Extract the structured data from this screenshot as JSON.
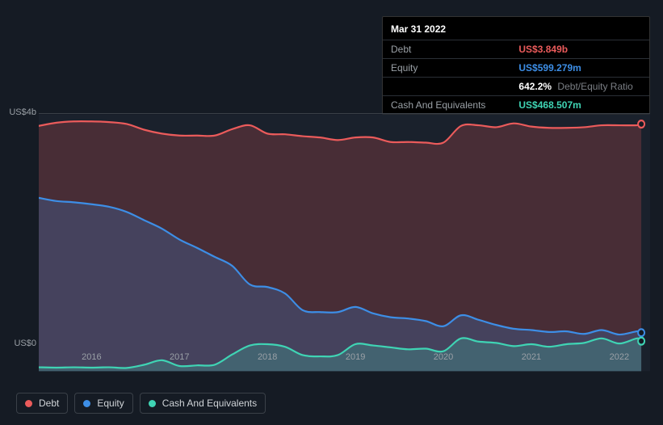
{
  "background_color": "#151b24",
  "tooltip": {
    "date": "Mar 31 2022",
    "rows": [
      {
        "label": "Debt",
        "value": "US$3.849b",
        "color": "#eb5b5b"
      },
      {
        "label": "Equity",
        "value": "US$599.279m",
        "color": "#3d8ee6"
      },
      {
        "label": "",
        "value": "642.2%",
        "sublabel": "Debt/Equity Ratio",
        "color": "#ffffff"
      },
      {
        "label": "Cash And Equivalents",
        "value": "US$468.507m",
        "color": "#3fd4b4"
      }
    ]
  },
  "chart": {
    "type": "area",
    "x_axis": {
      "years": [
        2016,
        2017,
        2018,
        2019,
        2020,
        2021,
        2022
      ],
      "min": 2015.4,
      "max": 2022.35
    },
    "y_axis": {
      "ticks": [
        {
          "v": 0,
          "label": "US$0"
        },
        {
          "v": 4000,
          "label": "US$4b"
        }
      ],
      "min": 0,
      "max": 4000
    },
    "grid_color": "#3a4048",
    "plot_bg": "#1a212c",
    "series": [
      {
        "name": "Debt",
        "color": "#eb5b5b",
        "fill_opacity": 0.22,
        "line_width": 2,
        "data": [
          [
            2015.4,
            3820
          ],
          [
            2015.6,
            3870
          ],
          [
            2015.8,
            3890
          ],
          [
            2016.0,
            3890
          ],
          [
            2016.2,
            3880
          ],
          [
            2016.4,
            3850
          ],
          [
            2016.6,
            3760
          ],
          [
            2016.8,
            3700
          ],
          [
            2017.0,
            3670
          ],
          [
            2017.2,
            3670
          ],
          [
            2017.4,
            3670
          ],
          [
            2017.6,
            3770
          ],
          [
            2017.8,
            3830
          ],
          [
            2018.0,
            3700
          ],
          [
            2018.2,
            3690
          ],
          [
            2018.4,
            3660
          ],
          [
            2018.6,
            3640
          ],
          [
            2018.8,
            3600
          ],
          [
            2019.0,
            3640
          ],
          [
            2019.2,
            3640
          ],
          [
            2019.4,
            3570
          ],
          [
            2019.6,
            3570
          ],
          [
            2019.8,
            3560
          ],
          [
            2020.0,
            3560
          ],
          [
            2020.2,
            3820
          ],
          [
            2020.4,
            3830
          ],
          [
            2020.6,
            3800
          ],
          [
            2020.8,
            3860
          ],
          [
            2021.0,
            3810
          ],
          [
            2021.2,
            3790
          ],
          [
            2021.4,
            3790
          ],
          [
            2021.6,
            3800
          ],
          [
            2021.8,
            3830
          ],
          [
            2022.0,
            3830
          ],
          [
            2022.2,
            3830
          ],
          [
            2022.25,
            3849
          ]
        ]
      },
      {
        "name": "Equity",
        "color": "#3d8ee6",
        "fill_opacity": 0.22,
        "line_width": 2,
        "data": [
          [
            2015.4,
            2700
          ],
          [
            2015.6,
            2650
          ],
          [
            2015.8,
            2630
          ],
          [
            2016.0,
            2600
          ],
          [
            2016.2,
            2560
          ],
          [
            2016.4,
            2480
          ],
          [
            2016.6,
            2350
          ],
          [
            2016.8,
            2220
          ],
          [
            2017.0,
            2050
          ],
          [
            2017.2,
            1920
          ],
          [
            2017.4,
            1780
          ],
          [
            2017.6,
            1640
          ],
          [
            2017.8,
            1350
          ],
          [
            2018.0,
            1310
          ],
          [
            2018.2,
            1210
          ],
          [
            2018.4,
            950
          ],
          [
            2018.6,
            920
          ],
          [
            2018.8,
            920
          ],
          [
            2019.0,
            1000
          ],
          [
            2019.2,
            900
          ],
          [
            2019.4,
            840
          ],
          [
            2019.6,
            820
          ],
          [
            2019.8,
            780
          ],
          [
            2020.0,
            700
          ],
          [
            2020.2,
            870
          ],
          [
            2020.4,
            800
          ],
          [
            2020.6,
            720
          ],
          [
            2020.8,
            660
          ],
          [
            2021.0,
            640
          ],
          [
            2021.2,
            610
          ],
          [
            2021.4,
            620
          ],
          [
            2021.6,
            580
          ],
          [
            2021.8,
            640
          ],
          [
            2022.0,
            570
          ],
          [
            2022.2,
            620
          ],
          [
            2022.25,
            599
          ]
        ]
      },
      {
        "name": "Cash And Equivalents",
        "color": "#3fd4b4",
        "fill_opacity": 0.22,
        "line_width": 2,
        "data": [
          [
            2015.4,
            60
          ],
          [
            2015.6,
            55
          ],
          [
            2015.8,
            60
          ],
          [
            2016.0,
            55
          ],
          [
            2016.2,
            60
          ],
          [
            2016.4,
            50
          ],
          [
            2016.6,
            100
          ],
          [
            2016.8,
            170
          ],
          [
            2017.0,
            80
          ],
          [
            2017.2,
            90
          ],
          [
            2017.4,
            100
          ],
          [
            2017.6,
            260
          ],
          [
            2017.8,
            400
          ],
          [
            2018.0,
            420
          ],
          [
            2018.2,
            380
          ],
          [
            2018.4,
            250
          ],
          [
            2018.6,
            230
          ],
          [
            2018.8,
            250
          ],
          [
            2019.0,
            420
          ],
          [
            2019.2,
            400
          ],
          [
            2019.4,
            370
          ],
          [
            2019.6,
            340
          ],
          [
            2019.8,
            350
          ],
          [
            2020.0,
            310
          ],
          [
            2020.2,
            510
          ],
          [
            2020.4,
            460
          ],
          [
            2020.6,
            440
          ],
          [
            2020.8,
            390
          ],
          [
            2021.0,
            420
          ],
          [
            2021.2,
            380
          ],
          [
            2021.4,
            420
          ],
          [
            2021.6,
            440
          ],
          [
            2021.8,
            510
          ],
          [
            2022.0,
            430
          ],
          [
            2022.2,
            510
          ],
          [
            2022.25,
            468
          ]
        ]
      }
    ]
  },
  "legend": {
    "items": [
      {
        "name": "Debt",
        "color": "#eb5b5b"
      },
      {
        "name": "Equity",
        "color": "#3d8ee6"
      },
      {
        "name": "Cash And Equivalents",
        "color": "#3fd4b4"
      }
    ]
  }
}
